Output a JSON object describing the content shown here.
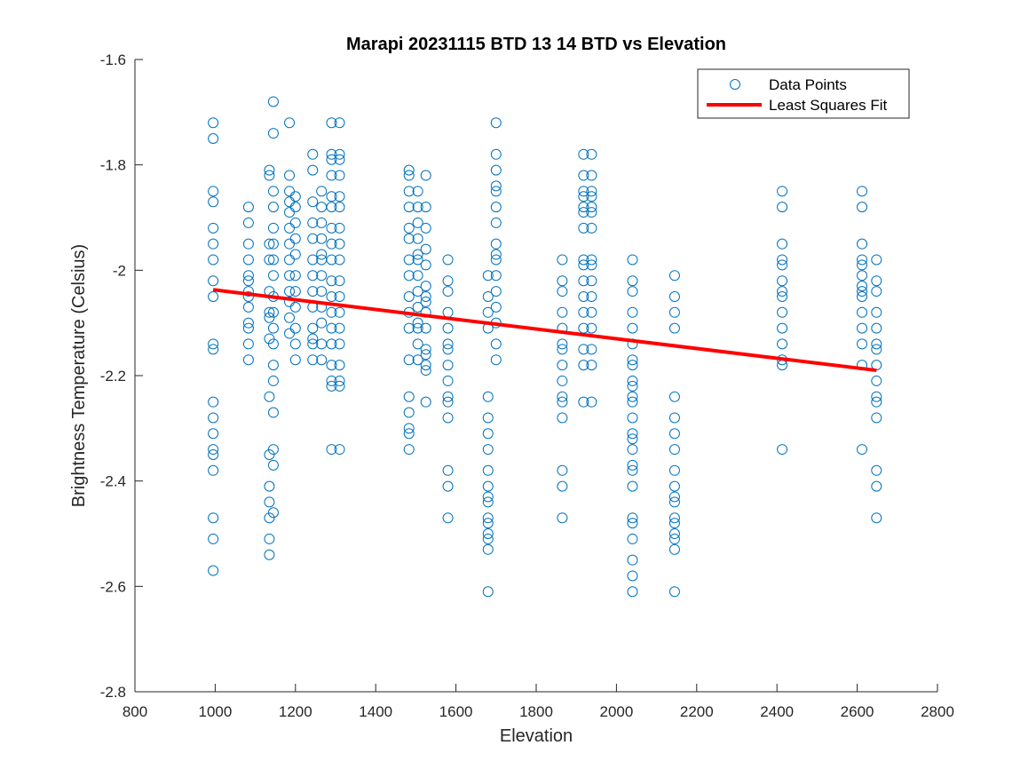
{
  "chart_data": {
    "type": "scatter",
    "title": "Marapi 20231115 BTD 13 14 BTD vs Elevation",
    "xlabel": "Elevation",
    "ylabel": "Brightness Temperature (Celsius)",
    "xlim": [
      800,
      2800
    ],
    "ylim": [
      -2.8,
      -1.6
    ],
    "xticks": [
      800,
      1000,
      1200,
      1400,
      1600,
      1800,
      2000,
      2200,
      2400,
      2600,
      2800
    ],
    "yticks": [
      -2.8,
      -2.6,
      -2.4,
      -2.2,
      -2.0,
      -1.8,
      -1.6
    ],
    "ytick_labels": [
      "-2.8",
      "-2.6",
      "-2.4",
      "-2.2",
      "-2",
      "-1.8",
      "-1.6"
    ],
    "grid": false,
    "legend_position": "top-right",
    "colors": {
      "points": "#0072BD",
      "fit": "#FF0000"
    },
    "series": [
      {
        "name": "Data Points",
        "type": "scatter",
        "columns": [
          {
            "x": 995,
            "y": [
              -1.72,
              -1.75,
              -1.85,
              -1.87,
              -1.92,
              -1.95,
              -1.98,
              -2.02,
              -2.05,
              -2.14,
              -2.15,
              -2.25,
              -2.28,
              -2.31,
              -2.34,
              -2.35,
              -2.38,
              -2.47,
              -2.51,
              -2.57
            ]
          },
          {
            "x": 1083,
            "y": [
              -1.88,
              -1.91,
              -1.95,
              -1.98,
              -2.01,
              -2.02,
              -2.04,
              -2.05,
              -2.07,
              -2.1,
              -2.11,
              -2.14,
              -2.17
            ]
          },
          {
            "x": 1135,
            "y": [
              -1.81,
              -1.82,
              -1.95,
              -1.98,
              -2.04,
              -2.08,
              -2.09,
              -2.13,
              -2.24,
              -2.35,
              -2.41,
              -2.44,
              -2.47,
              -2.51,
              -2.54
            ]
          },
          {
            "x": 1145,
            "y": [
              -1.68,
              -1.74,
              -1.85,
              -1.88,
              -1.92,
              -1.95,
              -1.98,
              -2.01,
              -2.05,
              -2.08,
              -2.11,
              -2.14,
              -2.18,
              -2.21,
              -2.27,
              -2.34,
              -2.37,
              -2.46
            ]
          },
          {
            "x": 1185,
            "y": [
              -1.72,
              -1.82,
              -1.85,
              -1.87,
              -1.89,
              -1.92,
              -1.95,
              -1.98,
              -2.01,
              -2.04,
              -2.06,
              -2.09,
              -2.12
            ]
          },
          {
            "x": 1200,
            "y": [
              -1.86,
              -1.88,
              -1.91,
              -1.94,
              -1.97,
              -2.01,
              -2.04,
              -2.07,
              -2.11,
              -2.14,
              -2.17
            ]
          },
          {
            "x": 1243,
            "y": [
              -1.78,
              -1.81,
              -1.87,
              -1.91,
              -1.94,
              -1.98,
              -2.01,
              -2.04,
              -2.07,
              -2.11,
              -2.13,
              -2.14,
              -2.17
            ]
          },
          {
            "x": 1265,
            "y": [
              -1.85,
              -1.88,
              -1.91,
              -1.94,
              -1.97,
              -1.98,
              -2.01,
              -2.04,
              -2.07,
              -2.1,
              -2.14,
              -2.17
            ]
          },
          {
            "x": 1290,
            "y": [
              -1.72,
              -1.78,
              -1.79,
              -1.82,
              -1.86,
              -1.88,
              -1.92,
              -1.95,
              -1.98,
              -2.02,
              -2.05,
              -2.08,
              -2.11,
              -2.14,
              -2.18,
              -2.21,
              -2.22,
              -2.34
            ]
          },
          {
            "x": 1310,
            "y": [
              -1.72,
              -1.78,
              -1.79,
              -1.82,
              -1.86,
              -1.88,
              -1.92,
              -1.95,
              -1.98,
              -2.02,
              -2.05,
              -2.08,
              -2.11,
              -2.14,
              -2.18,
              -2.21,
              -2.22,
              -2.34
            ]
          },
          {
            "x": 1483,
            "y": [
              -1.81,
              -1.82,
              -1.85,
              -1.88,
              -1.92,
              -1.94,
              -1.98,
              -2.01,
              -2.05,
              -2.08,
              -2.11,
              -2.17,
              -2.24,
              -2.27,
              -2.3,
              -2.31,
              -2.34
            ]
          },
          {
            "x": 1505,
            "y": [
              -1.85,
              -1.88,
              -1.91,
              -1.94,
              -1.97,
              -1.98,
              -2.01,
              -2.04,
              -2.07,
              -2.1,
              -2.11,
              -2.14,
              -2.17
            ]
          },
          {
            "x": 1525,
            "y": [
              -1.82,
              -1.88,
              -1.92,
              -1.96,
              -1.99,
              -2.03,
              -2.05,
              -2.06,
              -2.08,
              -2.11,
              -2.15,
              -2.16,
              -2.18,
              -2.19,
              -2.25
            ]
          },
          {
            "x": 1580,
            "y": [
              -1.98,
              -2.02,
              -2.04,
              -2.08,
              -2.11,
              -2.14,
              -2.15,
              -2.18,
              -2.21,
              -2.24,
              -2.25,
              -2.28,
              -2.38,
              -2.41,
              -2.47
            ]
          },
          {
            "x": 1680,
            "y": [
              -2.01,
              -2.05,
              -2.08,
              -2.11,
              -2.24,
              -2.28,
              -2.31,
              -2.34,
              -2.38,
              -2.41,
              -2.43,
              -2.44,
              -2.47,
              -2.48,
              -2.5,
              -2.51,
              -2.53,
              -2.61
            ]
          },
          {
            "x": 1700,
            "y": [
              -1.72,
              -1.78,
              -1.81,
              -1.84,
              -1.85,
              -1.88,
              -1.91,
              -1.95,
              -1.97,
              -1.98,
              -2.01,
              -2.04,
              -2.07,
              -2.1,
              -2.14,
              -2.17
            ]
          },
          {
            "x": 1865,
            "y": [
              -1.98,
              -2.02,
              -2.04,
              -2.08,
              -2.11,
              -2.14,
              -2.15,
              -2.18,
              -2.21,
              -2.24,
              -2.25,
              -2.28,
              -2.38,
              -2.41,
              -2.47
            ]
          },
          {
            "x": 1918,
            "y": [
              -1.78,
              -1.82,
              -1.85,
              -1.86,
              -1.88,
              -1.89,
              -1.92,
              -1.98,
              -1.99,
              -2.02,
              -2.05,
              -2.08,
              -2.11,
              -2.15,
              -2.18,
              -2.25
            ]
          },
          {
            "x": 1938,
            "y": [
              -1.78,
              -1.82,
              -1.85,
              -1.86,
              -1.88,
              -1.89,
              -1.92,
              -1.98,
              -1.99,
              -2.02,
              -2.05,
              -2.08,
              -2.11,
              -2.15,
              -2.18,
              -2.25
            ]
          },
          {
            "x": 2040,
            "y": [
              -1.98,
              -2.02,
              -2.04,
              -2.08,
              -2.11,
              -2.14,
              -2.17,
              -2.18,
              -2.21,
              -2.22,
              -2.24,
              -2.25,
              -2.28,
              -2.31,
              -2.32,
              -2.34,
              -2.37,
              -2.38,
              -2.41,
              -2.47,
              -2.48,
              -2.51,
              -2.55,
              -2.58,
              -2.61
            ]
          },
          {
            "x": 2145,
            "y": [
              -2.01,
              -2.05,
              -2.08,
              -2.11,
              -2.24,
              -2.28,
              -2.31,
              -2.34,
              -2.38,
              -2.41,
              -2.43,
              -2.44,
              -2.47,
              -2.48,
              -2.5,
              -2.51,
              -2.53,
              -2.61
            ]
          },
          {
            "x": 2413,
            "y": [
              -1.85,
              -1.88,
              -1.95,
              -1.98,
              -1.99,
              -2.02,
              -2.04,
              -2.05,
              -2.08,
              -2.11,
              -2.14,
              -2.17,
              -2.18,
              -2.34
            ]
          },
          {
            "x": 2612,
            "y": [
              -1.85,
              -1.88,
              -1.95,
              -1.98,
              -1.99,
              -2.01,
              -2.03,
              -2.04,
              -2.05,
              -2.08,
              -2.11,
              -2.14,
              -2.18,
              -2.34
            ]
          },
          {
            "x": 2648,
            "y": [
              -1.98,
              -2.02,
              -2.04,
              -2.08,
              -2.11,
              -2.14,
              -2.15,
              -2.18,
              -2.21,
              -2.24,
              -2.25,
              -2.28,
              -2.38,
              -2.41,
              -2.47
            ]
          }
        ]
      },
      {
        "name": "Least Squares Fit",
        "type": "line",
        "points": [
          [
            995,
            -2.037
          ],
          [
            2648,
            -2.19
          ]
        ]
      }
    ]
  }
}
